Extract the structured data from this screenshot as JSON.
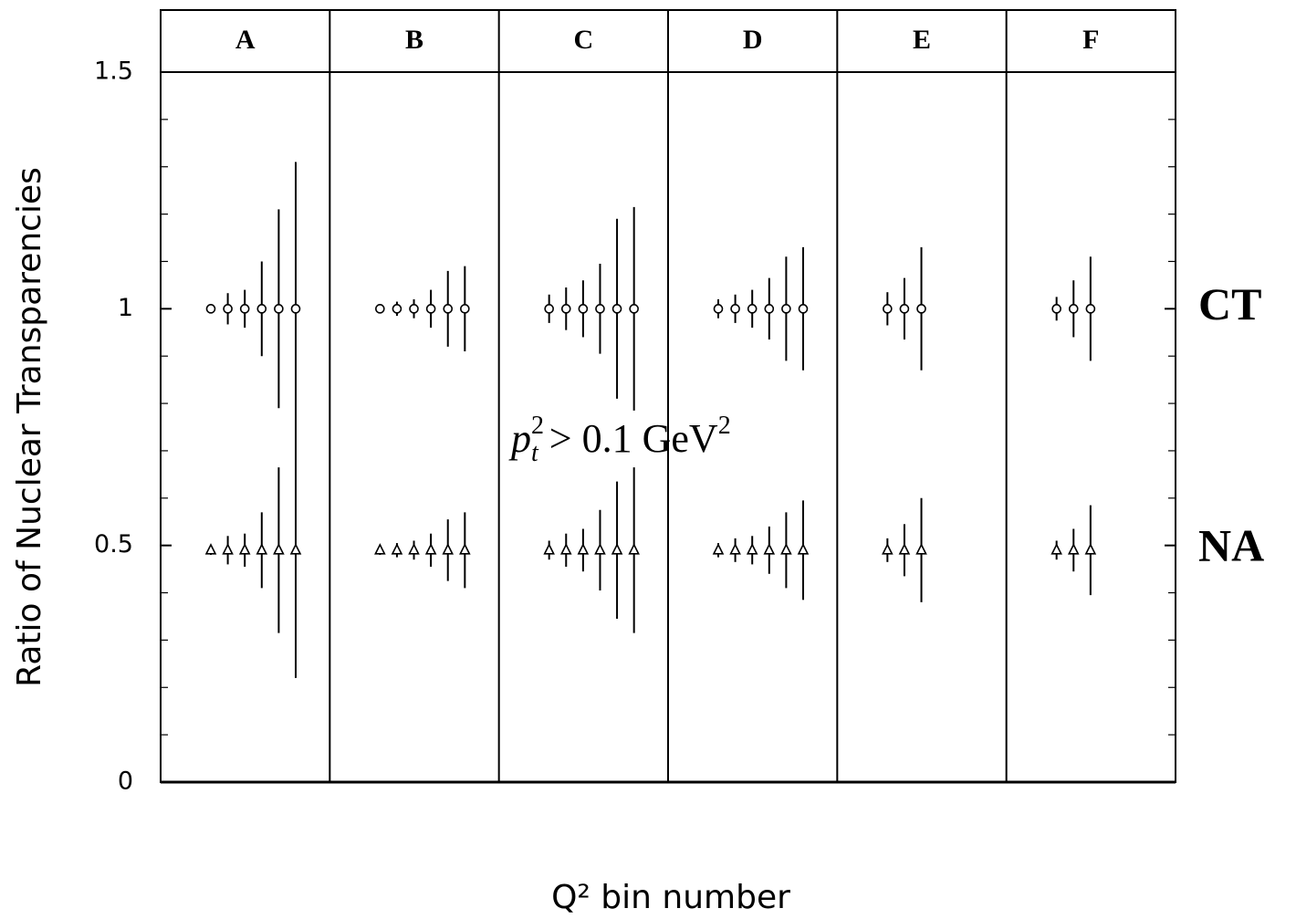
{
  "chart_data": {
    "type": "errorbar-panels",
    "xlabel": "Q² bin number",
    "ylabel": "Ratio of Nuclear Transparencies",
    "ylim": [
      0,
      1.5
    ],
    "yticks": [
      0,
      0.5,
      1,
      1.5
    ],
    "yminorticks": [
      0.1,
      0.2,
      0.3,
      0.4,
      0.6,
      0.7,
      0.8,
      0.9,
      1.1,
      1.2,
      1.3,
      1.4
    ],
    "annotation": {
      "base": "p",
      "sup": "2",
      "sub": "t",
      "text": "> 0.1 GeV",
      "unit_sup": "2"
    },
    "series": [
      {
        "name": "CT",
        "marker": "circle",
        "color": "#000000"
      },
      {
        "name": "NA",
        "marker": "triangle",
        "color": "#000000"
      }
    ],
    "panels": [
      {
        "label": "A",
        "data": [
          {
            "values": [
              1,
              1,
              1,
              1,
              1,
              1
            ],
            "errors": [
              0.01,
              0.033,
              0.04,
              0.1,
              0.21,
              0.31
            ]
          },
          {
            "values": [
              0.49,
              0.49,
              0.49,
              0.49,
              0.49,
              0.49
            ],
            "errors": [
              0.01,
              0.03,
              0.035,
              0.08,
              0.175,
              0.27
            ]
          }
        ]
      },
      {
        "label": "B",
        "data": [
          {
            "values": [
              1,
              1,
              1,
              1,
              1,
              1
            ],
            "errors": [
              0.01,
              0.015,
              0.02,
              0.04,
              0.08,
              0.09
            ]
          },
          {
            "values": [
              0.49,
              0.49,
              0.49,
              0.49,
              0.49,
              0.49
            ],
            "errors": [
              0.01,
              0.015,
              0.02,
              0.035,
              0.065,
              0.08
            ]
          }
        ]
      },
      {
        "label": "C",
        "data": [
          {
            "values": [
              1,
              1,
              1,
              1,
              1,
              1
            ],
            "errors": [
              0.03,
              0.045,
              0.06,
              0.095,
              0.19,
              0.215
            ]
          },
          {
            "values": [
              0.49,
              0.49,
              0.49,
              0.49,
              0.49,
              0.49
            ],
            "errors": [
              0.02,
              0.035,
              0.045,
              0.085,
              0.145,
              0.175
            ]
          }
        ]
      },
      {
        "label": "D",
        "data": [
          {
            "values": [
              1,
              1,
              1,
              1,
              1,
              1
            ],
            "errors": [
              0.02,
              0.03,
              0.04,
              0.065,
              0.11,
              0.13
            ]
          },
          {
            "values": [
              0.49,
              0.49,
              0.49,
              0.49,
              0.49,
              0.49
            ],
            "errors": [
              0.015,
              0.025,
              0.03,
              0.05,
              0.08,
              0.105
            ]
          }
        ]
      },
      {
        "label": "E",
        "data": [
          {
            "values": [
              1,
              1,
              1
            ],
            "errors": [
              0.035,
              0.065,
              0.13
            ]
          },
          {
            "values": [
              0.49,
              0.49,
              0.49
            ],
            "errors": [
              0.025,
              0.055,
              0.11
            ]
          }
        ]
      },
      {
        "label": "F",
        "data": [
          {
            "values": [
              1,
              1,
              1
            ],
            "errors": [
              0.025,
              0.06,
              0.11
            ]
          },
          {
            "values": [
              0.49,
              0.49,
              0.49
            ],
            "errors": [
              0.02,
              0.045,
              0.095
            ]
          }
        ]
      }
    ]
  }
}
